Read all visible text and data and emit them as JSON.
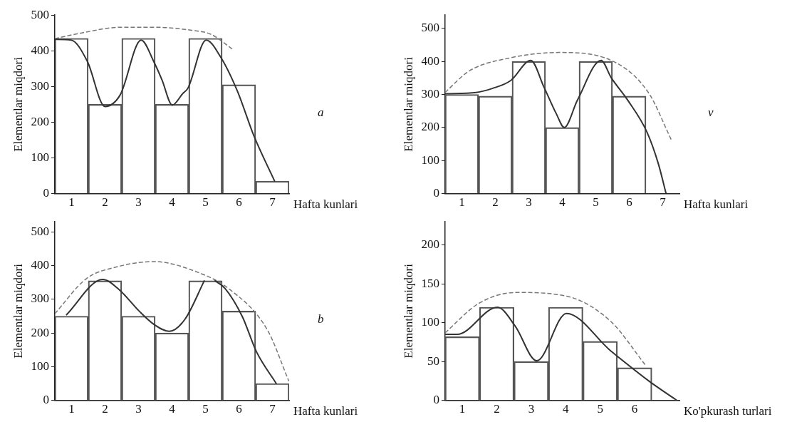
{
  "chart_data": [
    {
      "type": "bar",
      "xlabel": "Hafta kunlari",
      "ylabel": "Elementlar miqdori",
      "annotations": [
        "a"
      ],
      "xlim": [
        0.5,
        7.5
      ],
      "xticks": [
        1,
        2,
        3,
        4,
        5,
        6,
        7
      ],
      "ylim": [
        0,
        500
      ],
      "yticks": [
        0,
        100,
        200,
        300,
        400,
        500
      ],
      "grid": false,
      "marker": "none",
      "series": [
        {
          "color": "#555555",
          "x": [
            1,
            2,
            3,
            4,
            5,
            6,
            7
          ],
          "values": [
            435,
            250,
            435,
            250,
            435,
            305,
            35
          ]
        },
        {
          "type": "line",
          "color": "#333333",
          "x": [
            0.5,
            0.99,
            1.47,
            2.0,
            2.45,
            3.08,
            3.47,
            3.7,
            4.01,
            4.32,
            4.48,
            5.02,
            5.45,
            5.95,
            6.45,
            7.07
          ],
          "values": [
            432,
            430,
            371,
            244,
            276,
            430,
            367,
            319,
            248,
            280,
            296,
            430,
            383,
            288,
            161,
            34
          ]
        },
        {
          "type": "line",
          "line_style": "dashed",
          "color": "#777777",
          "x": [
            0.5,
            1.3,
            2.46,
            3.47,
            4.55,
            5.17,
            5.83
          ],
          "values": [
            434,
            450,
            466,
            466,
            458,
            446,
            403
          ]
        }
      ]
    },
    {
      "type": "bar",
      "xlabel": "Hafta kunlari",
      "ylabel": "Elementlar miqdori",
      "annotations": [
        "v"
      ],
      "xlim": [
        0.5,
        7.5
      ],
      "xticks": [
        1,
        2,
        3,
        4,
        5,
        6,
        7
      ],
      "ylim": [
        0,
        540
      ],
      "yticks": [
        0,
        100,
        200,
        300,
        400,
        500
      ],
      "grid": false,
      "marker": "none",
      "series": [
        {
          "color": "#555555",
          "x": [
            1,
            2,
            3,
            4,
            5,
            6
          ],
          "values": [
            300,
            295,
            400,
            200,
            400,
            295
          ]
        },
        {
          "type": "line",
          "color": "#333333",
          "x": [
            0.5,
            1.43,
            1.91,
            2.46,
            3.06,
            3.45,
            3.82,
            4.06,
            4.45,
            5.16,
            5.46,
            5.96,
            6.53,
            6.87,
            7.1
          ],
          "values": [
            302,
            306,
            318,
            342,
            403,
            323,
            242,
            200,
            282,
            403,
            351,
            282,
            186,
            90,
            0
          ]
        },
        {
          "type": "line",
          "line_style": "dashed",
          "color": "#777777",
          "x": [
            0.5,
            1.22,
            2.46,
            3.9,
            5.46,
            6.57,
            7.26
          ],
          "values": [
            306,
            371,
            411,
            427,
            403,
            306,
            162
          ]
        }
      ]
    },
    {
      "type": "bar",
      "xlabel": "Hafta kunlari",
      "ylabel": "Elementlar miqdori",
      "annotations": [
        "b"
      ],
      "xlim": [
        0.5,
        7.5
      ],
      "xticks": [
        1,
        2,
        3,
        4,
        5,
        6,
        7
      ],
      "ylim": [
        0,
        530
      ],
      "yticks": [
        0,
        100,
        200,
        300,
        400,
        500
      ],
      "grid": false,
      "marker": "none",
      "series": [
        {
          "color": "#555555",
          "x": [
            1,
            2,
            3,
            4,
            5,
            6,
            7
          ],
          "values": [
            250,
            355,
            250,
            200,
            355,
            265,
            50
          ]
        },
        {
          "type": "line",
          "color": "#333333",
          "x": [
            0.84,
            1.93,
            2.42,
            3.02,
            3.47,
            3.92,
            4.39,
            4.97,
            5.12,
            5.27,
            5.58,
            6.1,
            6.52,
            7.12
          ],
          "values": [
            253,
            359,
            329,
            265,
            225,
            205,
            241,
            356,
            null,
            356,
            333,
            249,
            145,
            49
          ]
        },
        {
          "type": "line",
          "line_style": "dashed",
          "color": "#777777",
          "x": [
            0.5,
            1.44,
            2.34,
            3.47,
            4.67,
            5.73,
            6.85,
            7.49
          ],
          "values": [
            257,
            361,
            396,
            412,
            384,
            329,
            209,
            57
          ]
        }
      ]
    },
    {
      "type": "bar",
      "xlabel": "Ko'pkurash turlari",
      "ylabel": "Elementlar miqdori",
      "xlim": [
        0.5,
        7.3
      ],
      "xticks": [
        1,
        2,
        3,
        4,
        5,
        6
      ],
      "ylim": [
        0,
        230
      ],
      "yticks": [
        0,
        50,
        100,
        150,
        200
      ],
      "grid": false,
      "marker": "none",
      "series": [
        {
          "color": "#555555",
          "x": [
            1,
            2,
            3,
            4,
            5,
            6
          ],
          "values": [
            82,
            120,
            50,
            120,
            76,
            42
          ]
        },
        {
          "type": "line",
          "color": "#333333",
          "x": [
            0.5,
            0.85,
            2.02,
            2.53,
            3.16,
            4.02,
            5.3,
            6.41,
            7.22
          ],
          "values": [
            85,
            85,
            120,
            96,
            51,
            112,
            64,
            25,
            0
          ]
        },
        {
          "type": "line",
          "line_style": "dashed",
          "color": "#777777",
          "x": [
            0.5,
            1.48,
            2.57,
            4.05,
            5.3,
            6.32
          ],
          "values": [
            87,
            125,
            139,
            134,
            102,
            45
          ]
        }
      ]
    }
  ]
}
